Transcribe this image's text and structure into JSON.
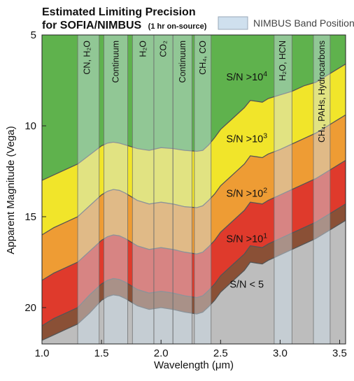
{
  "chart_data": {
    "type": "area",
    "title": "Estimated Limiting Precision",
    "subtitle": "for SOFIA/NIMBUS",
    "subtitle_note": "(1 hr on-source)",
    "xlabel": "Wavelength (μm)",
    "ylabel": "Apparent Magnitude (Vega)",
    "xlim": [
      1.0,
      3.55
    ],
    "ylim": [
      22,
      5
    ],
    "y_inverted": true,
    "grid": false,
    "legend_position": "top-right",
    "legend": {
      "label": "NIMBUS Band Positions",
      "color": "#cfe0ee"
    },
    "x_ticks": [
      "1.0",
      "1.5",
      "2.0",
      "2.5",
      "3.0",
      "3.5"
    ],
    "x_tick_values": [
      1.0,
      1.5,
      2.0,
      2.5,
      3.0,
      3.5
    ],
    "y_ticks": [
      "5",
      "10",
      "15",
      "20"
    ],
    "y_tick_values": [
      5,
      10,
      15,
      20
    ],
    "x": [
      1.0,
      1.1,
      1.2,
      1.3,
      1.4,
      1.5,
      1.55,
      1.6,
      1.65,
      1.7,
      1.8,
      1.9,
      2.0,
      2.1,
      2.2,
      2.3,
      2.35,
      2.4,
      2.45,
      2.5,
      2.6,
      2.7,
      2.75,
      2.8,
      2.85,
      2.9,
      3.0,
      3.1,
      3.2,
      3.3,
      3.4,
      3.5,
      3.55
    ],
    "series": [
      {
        "name": "S/N >10⁴",
        "label_main": "S/N >10",
        "label_exp": "4",
        "color": "#5fb24d",
        "values": [
          13.0,
          12.7,
          12.4,
          12.1,
          11.6,
          11.1,
          10.95,
          10.9,
          10.95,
          11.05,
          11.25,
          11.35,
          11.2,
          11.25,
          11.35,
          11.4,
          11.35,
          11.05,
          10.65,
          10.2,
          9.6,
          9.0,
          8.6,
          8.65,
          8.7,
          8.5,
          8.3,
          8.1,
          7.8,
          7.6,
          7.2,
          6.8,
          6.6
        ]
      },
      {
        "name": "S/N >10³",
        "label_main": "S/N >10",
        "label_exp": "3",
        "color": "#f1e52a",
        "values": [
          16.0,
          15.6,
          15.3,
          15.0,
          14.4,
          13.8,
          13.6,
          13.5,
          13.55,
          13.7,
          14.1,
          14.3,
          14.2,
          14.3,
          14.45,
          14.5,
          14.4,
          14.1,
          13.75,
          13.3,
          12.7,
          12.1,
          11.65,
          11.7,
          11.75,
          11.55,
          11.3,
          11.0,
          10.7,
          10.4,
          10.0,
          9.6,
          9.4
        ]
      },
      {
        "name": "S/N >10²",
        "label_main": "S/N >10",
        "label_exp": "2",
        "color": "#ee9c34",
        "values": [
          18.5,
          18.1,
          17.8,
          17.5,
          16.9,
          16.3,
          16.1,
          16.0,
          16.05,
          16.2,
          16.6,
          16.8,
          16.7,
          16.8,
          16.95,
          17.05,
          16.95,
          16.65,
          16.3,
          15.85,
          15.25,
          14.65,
          14.2,
          14.25,
          14.3,
          14.1,
          13.8,
          13.5,
          13.2,
          12.9,
          12.5,
          12.1,
          11.9
        ]
      },
      {
        "name": "S/N >10¹",
        "label_main": "S/N >10",
        "label_exp": "1",
        "color": "#df3a2c",
        "values": [
          21.0,
          20.6,
          20.3,
          20.0,
          19.3,
          18.7,
          18.5,
          18.4,
          18.45,
          18.6,
          19.0,
          19.2,
          19.1,
          19.2,
          19.35,
          19.45,
          19.35,
          19.05,
          18.7,
          18.25,
          17.65,
          17.05,
          16.6,
          16.65,
          16.7,
          16.5,
          16.2,
          15.9,
          15.6,
          15.3,
          14.9,
          14.5,
          14.3
        ]
      },
      {
        "name": "S/N < 5",
        "label_main": "S/N < 5",
        "label_exp": "",
        "color": "#bdbdbd",
        "values": [
          21.8,
          21.5,
          21.2,
          20.9,
          20.3,
          19.6,
          19.4,
          19.3,
          19.35,
          19.5,
          19.9,
          20.1,
          20.0,
          20.1,
          20.25,
          20.35,
          20.25,
          19.95,
          19.6,
          19.15,
          18.55,
          17.95,
          17.5,
          17.55,
          17.6,
          17.4,
          17.1,
          16.8,
          16.5,
          16.2,
          15.8,
          15.4,
          15.2
        ]
      }
    ],
    "floor_color": "#8a5036",
    "region_label_positions": [
      {
        "x": 2.72,
        "y": 7.5
      },
      {
        "x": 2.72,
        "y": 10.9
      },
      {
        "x": 2.72,
        "y": 13.9
      },
      {
        "x": 2.72,
        "y": 16.4
      },
      {
        "x": 2.72,
        "y": 18.9
      }
    ],
    "bands": [
      {
        "label": "CN, H₂O",
        "x_start": 1.3,
        "x_end": 1.48,
        "label_x": 1.38
      },
      {
        "label": "Continuum",
        "x_start": 1.52,
        "x_end": 1.72,
        "label_x": 1.62
      },
      {
        "label": "H₂O",
        "x_start": 1.76,
        "x_end": 1.94,
        "label_x": 1.85
      },
      {
        "label": "CO₂",
        "x_start": 1.94,
        "x_end": 2.1,
        "label_x": 2.02
      },
      {
        "label": "Continuum",
        "x_start": 2.1,
        "x_end": 2.26,
        "label_x": 2.18
      },
      {
        "label": "CH₄, CO",
        "x_start": 2.28,
        "x_end": 2.42,
        "label_x": 2.35
      },
      {
        "label": "H₂O, HCN",
        "x_start": 2.95,
        "x_end": 3.1,
        "label_x": 3.02
      },
      {
        "label": "CH₄, PAHs, Hydrocarbons",
        "x_start": 3.28,
        "x_end": 3.42,
        "label_x": 3.35
      }
    ]
  }
}
